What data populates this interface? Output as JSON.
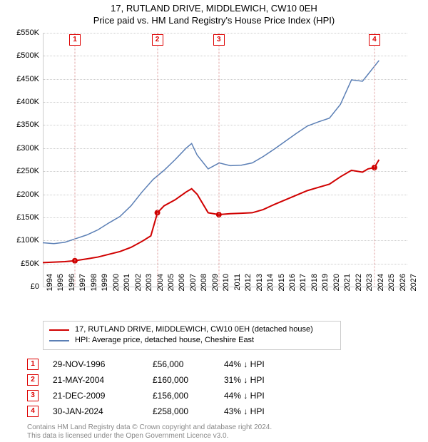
{
  "title_line1": "17, RUTLAND DRIVE, MIDDLEWICH, CW10 0EH",
  "title_line2": "Price paid vs. HM Land Registry's House Price Index (HPI)",
  "chart": {
    "type": "line",
    "x_years": {
      "min": 1994,
      "max": 2027,
      "step": 1
    },
    "ylim": [
      0,
      550000
    ],
    "ytick_step": 50000,
    "y_prefix": "£",
    "y_suffix": "K",
    "grid_color": "#cccccc",
    "grid_style": "dotted",
    "background": "#ffffff",
    "series": [
      {
        "name": "property",
        "color": "#d00000",
        "width": 2,
        "points": [
          [
            1994,
            52000
          ],
          [
            1996,
            54000
          ],
          [
            1996.9,
            56000
          ],
          [
            1998,
            60000
          ],
          [
            1999,
            64000
          ],
          [
            2000,
            70000
          ],
          [
            2001,
            76000
          ],
          [
            2002,
            85000
          ],
          [
            2003,
            98000
          ],
          [
            2003.8,
            110000
          ],
          [
            2004.4,
            160000
          ],
          [
            2005,
            175000
          ],
          [
            2006,
            188000
          ],
          [
            2007,
            205000
          ],
          [
            2007.5,
            212000
          ],
          [
            2008,
            200000
          ],
          [
            2009,
            160000
          ],
          [
            2009.97,
            156000
          ],
          [
            2011,
            158000
          ],
          [
            2012,
            159000
          ],
          [
            2013,
            160000
          ],
          [
            2014,
            167000
          ],
          [
            2015,
            178000
          ],
          [
            2016,
            188000
          ],
          [
            2017,
            198000
          ],
          [
            2018,
            208000
          ],
          [
            2019,
            215000
          ],
          [
            2020,
            222000
          ],
          [
            2021,
            238000
          ],
          [
            2022,
            252000
          ],
          [
            2023,
            248000
          ],
          [
            2023.5,
            255000
          ],
          [
            2024.08,
            258000
          ],
          [
            2024.5,
            275000
          ]
        ]
      },
      {
        "name": "hpi",
        "color": "#5b7fb5",
        "width": 1.5,
        "points": [
          [
            1994,
            95000
          ],
          [
            1995,
            93000
          ],
          [
            1996,
            96000
          ],
          [
            1997,
            104000
          ],
          [
            1998,
            112000
          ],
          [
            1999,
            123000
          ],
          [
            2000,
            138000
          ],
          [
            2001,
            152000
          ],
          [
            2002,
            175000
          ],
          [
            2003,
            205000
          ],
          [
            2004,
            232000
          ],
          [
            2005,
            252000
          ],
          [
            2006,
            275000
          ],
          [
            2007,
            300000
          ],
          [
            2007.5,
            310000
          ],
          [
            2008,
            285000
          ],
          [
            2009,
            255000
          ],
          [
            2010,
            268000
          ],
          [
            2011,
            262000
          ],
          [
            2012,
            263000
          ],
          [
            2013,
            268000
          ],
          [
            2014,
            282000
          ],
          [
            2015,
            298000
          ],
          [
            2016,
            315000
          ],
          [
            2017,
            332000
          ],
          [
            2018,
            348000
          ],
          [
            2019,
            357000
          ],
          [
            2020,
            365000
          ],
          [
            2021,
            395000
          ],
          [
            2022,
            448000
          ],
          [
            2023,
            445000
          ],
          [
            2023.5,
            460000
          ],
          [
            2024,
            475000
          ],
          [
            2024.5,
            490000
          ]
        ]
      }
    ],
    "transactions": [
      {
        "n": "1",
        "year": 1996.91,
        "date": "29-NOV-1996",
        "price": "£56,000",
        "diff": "44% ↓ HPI"
      },
      {
        "n": "2",
        "year": 2004.39,
        "date": "21-MAY-2004",
        "price": "£160,000",
        "diff": "31% ↓ HPI"
      },
      {
        "n": "3",
        "year": 2009.97,
        "date": "21-DEC-2009",
        "price": "£156,000",
        "diff": "44% ↓ HPI"
      },
      {
        "n": "4",
        "year": 2024.08,
        "date": "30-JAN-2024",
        "price": "£258,000",
        "diff": "43% ↓ HPI"
      }
    ],
    "transaction_point_color": "#d00000",
    "transaction_point_radius": 4
  },
  "legend": {
    "items": [
      {
        "color": "#d00000",
        "label": "17, RUTLAND DRIVE, MIDDLEWICH, CW10 0EH (detached house)"
      },
      {
        "color": "#5b7fb5",
        "label": "HPI: Average price, detached house, Cheshire East"
      }
    ]
  },
  "footer_line1": "Contains HM Land Registry data © Crown copyright and database right 2024.",
  "footer_line2": "This data is licensed under the Open Government Licence v3.0."
}
